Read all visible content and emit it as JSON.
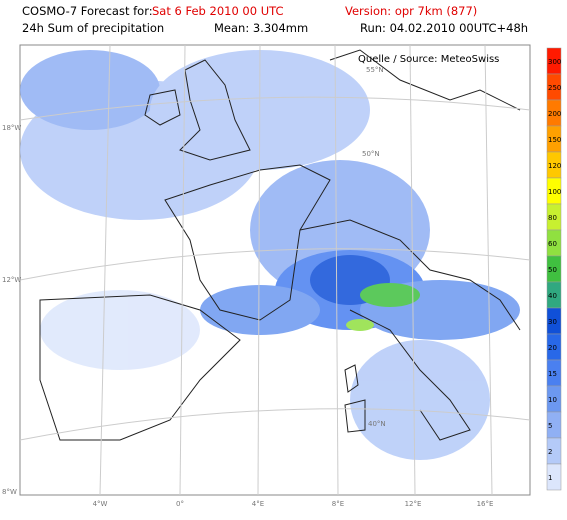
{
  "header": {
    "forecast_label": "COSMO-7 Forecast for:",
    "forecast_date": "Sat 6 Feb 2010 00 UTC",
    "version": "Version: opr 7km (877)",
    "product": "24h Sum of precipitation",
    "mean": "Mean: 3.304mm",
    "run": "Run: 04.02.2010 00UTC+48h"
  },
  "map": {
    "source": "Quelle / Source: MeteoSwiss",
    "lon_labels": [
      "4°W",
      "0°",
      "4°E",
      "8°E",
      "12°E",
      "16°E"
    ],
    "side_labels": [
      "18°W",
      "12°W",
      "8°W"
    ],
    "lat_labels": [
      "55°N",
      "50°N",
      "40°N"
    ]
  },
  "legend": {
    "levels": [
      {
        "label": "300",
        "color": "#ff1a00"
      },
      {
        "label": "250",
        "color": "#ff4a00"
      },
      {
        "label": "200",
        "color": "#ff7a00"
      },
      {
        "label": "150",
        "color": "#ffa000"
      },
      {
        "label": "120",
        "color": "#ffc800"
      },
      {
        "label": "100",
        "color": "#ffff00"
      },
      {
        "label": "80",
        "color": "#c8f030"
      },
      {
        "label": "60",
        "color": "#90e040"
      },
      {
        "label": "50",
        "color": "#40c040"
      },
      {
        "label": "40",
        "color": "#30a880"
      },
      {
        "label": "30",
        "color": "#1050d8"
      },
      {
        "label": "20",
        "color": "#2868e8"
      },
      {
        "label": "15",
        "color": "#4a80f0"
      },
      {
        "label": "10",
        "color": "#6c98f0"
      },
      {
        "label": "5",
        "color": "#90b0f4"
      },
      {
        "label": "2",
        "color": "#b4caf8"
      },
      {
        "label": "1",
        "color": "#dce6fc"
      }
    ]
  }
}
